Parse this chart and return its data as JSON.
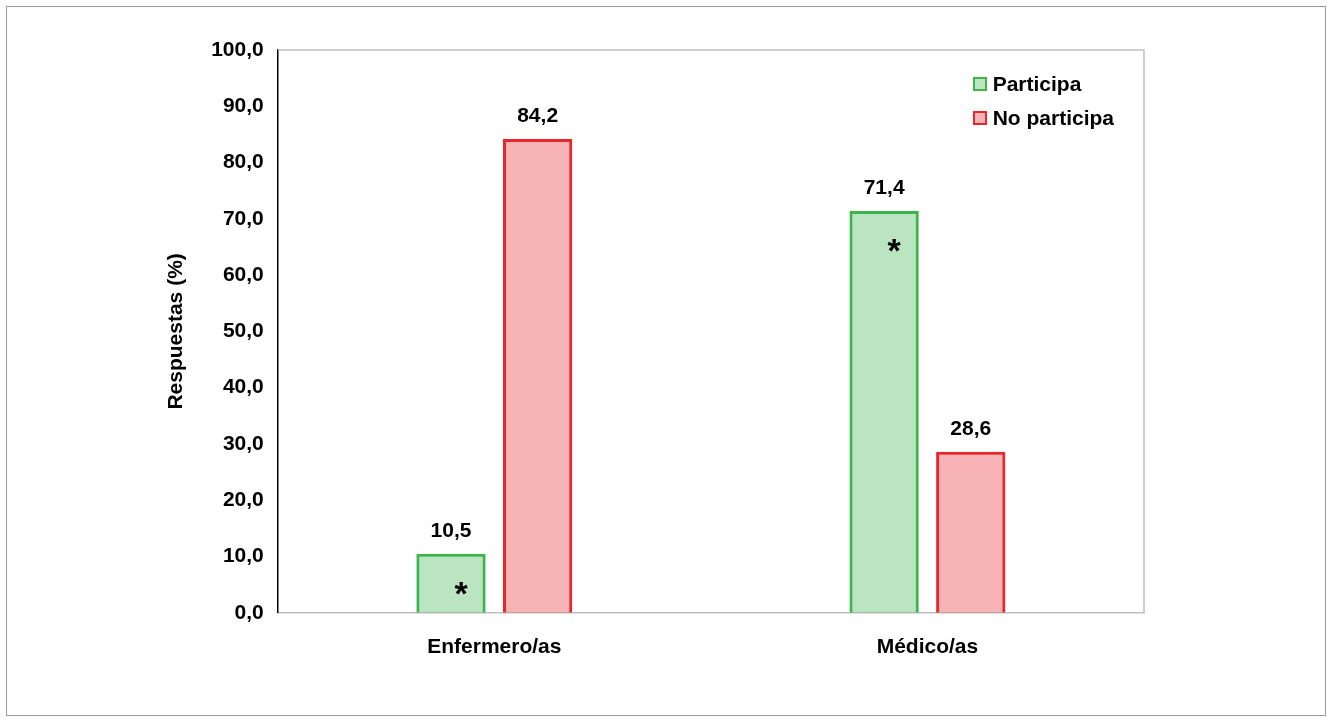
{
  "chart_data": {
    "type": "bar",
    "ylabel": "Respuestas (%)",
    "categories": [
      "Enfermero/as",
      "Médico/as"
    ],
    "series": [
      {
        "name": "Participa",
        "color": "#3cb44b",
        "values": [
          10.5,
          71.4
        ],
        "value_labels": [
          "10,5",
          "71,4"
        ]
      },
      {
        "name": "No participa",
        "color": "#e8262b",
        "values": [
          84.2,
          28.6
        ],
        "value_labels": [
          "84,2",
          "28,6"
        ]
      }
    ],
    "ylim": [
      0,
      100
    ],
    "yticks": [
      {
        "value": 0,
        "label": "0,0"
      },
      {
        "value": 10,
        "label": "10,0"
      },
      {
        "value": 20,
        "label": "20,0"
      },
      {
        "value": 30,
        "label": "30,0"
      },
      {
        "value": 40,
        "label": "40,0"
      },
      {
        "value": 50,
        "label": "50,0"
      },
      {
        "value": 60,
        "label": "60,0"
      },
      {
        "value": 70,
        "label": "70,0"
      },
      {
        "value": 80,
        "label": "80,0"
      },
      {
        "value": 90,
        "label": "90,0"
      },
      {
        "value": 100,
        "label": "100,0"
      }
    ],
    "annotations": [
      "*",
      "*"
    ],
    "grid": false,
    "legend": "top right"
  }
}
